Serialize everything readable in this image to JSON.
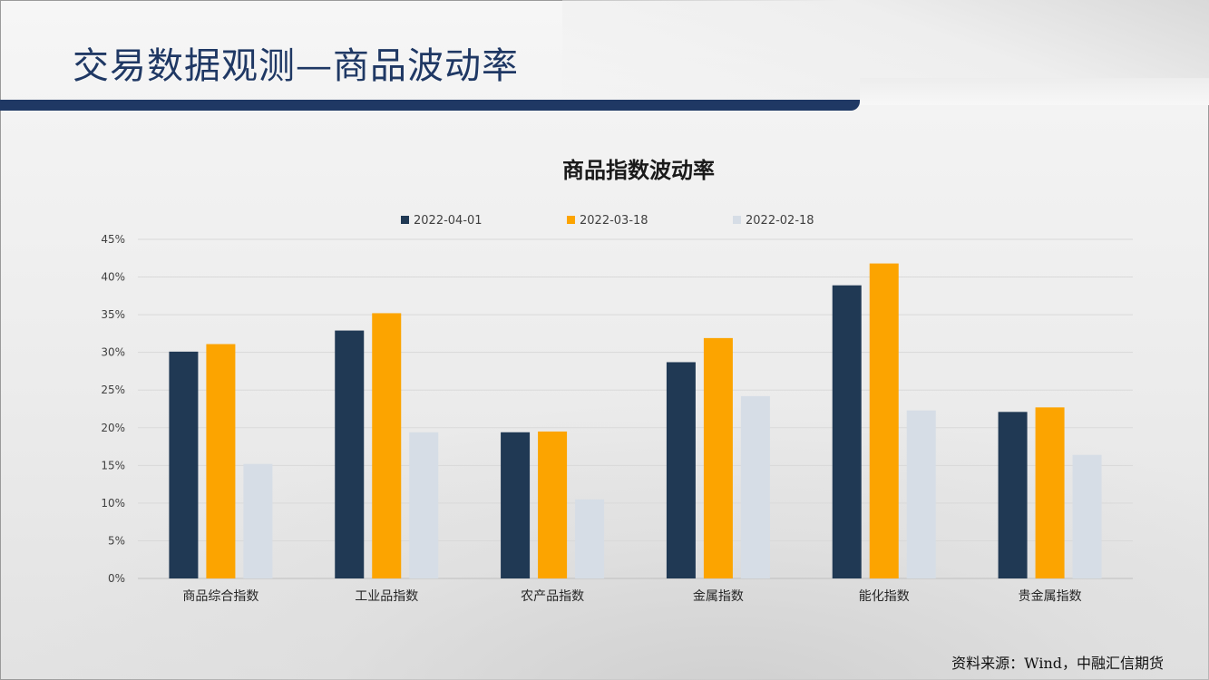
{
  "page": {
    "title": "交易数据观测—商品波动率",
    "source": "资料来源：Wind，中融汇信期货"
  },
  "colors": {
    "primary": "#1f3864",
    "series1": "#203954",
    "series2": "#fca400",
    "series3": "#d6dde6"
  },
  "chart_data": {
    "type": "bar",
    "title": "商品指数波动率",
    "categories": [
      "商品综合指数",
      "工业品指数",
      "农产品指数",
      "金属指数",
      "能化指数",
      "贵金属指数"
    ],
    "series": [
      {
        "name": "2022-04-01",
        "values": [
          30.1,
          32.9,
          19.4,
          28.7,
          38.9,
          22.1
        ]
      },
      {
        "name": "2022-03-18",
        "values": [
          31.1,
          35.2,
          19.5,
          31.9,
          41.8,
          22.7
        ]
      },
      {
        "name": "2022-02-18",
        "values": [
          15.2,
          19.4,
          10.5,
          24.2,
          22.3,
          16.4
        ]
      }
    ],
    "ylim": [
      0,
      45
    ],
    "yticks": [
      "0%",
      "5%",
      "10%",
      "15%",
      "20%",
      "25%",
      "30%",
      "35%",
      "40%",
      "45%"
    ],
    "grid": true,
    "legend_position": "top"
  }
}
